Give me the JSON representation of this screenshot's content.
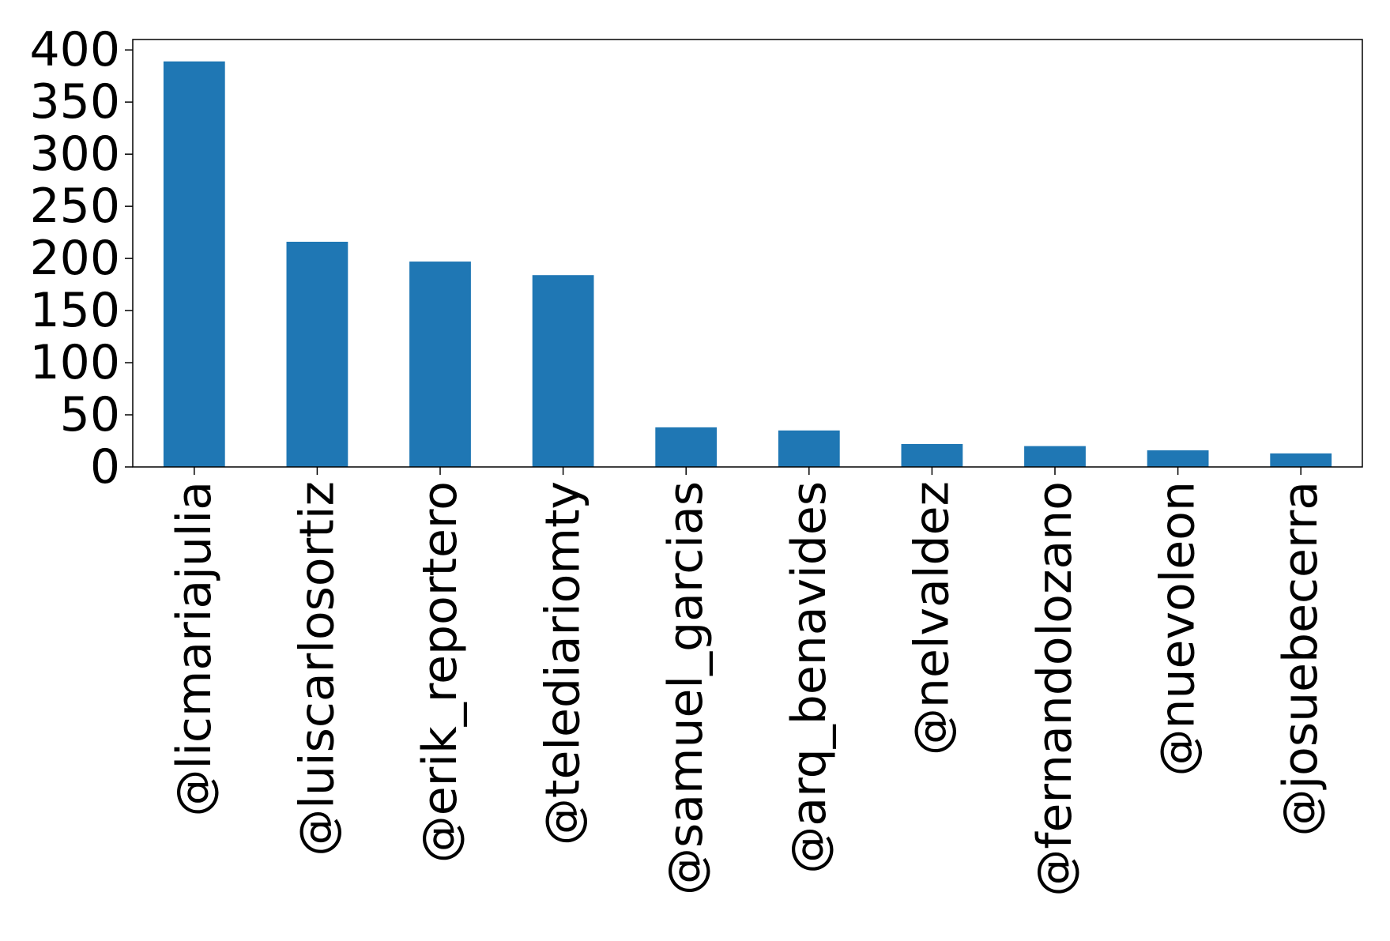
{
  "chart_data": {
    "type": "bar",
    "title": "",
    "xlabel": "",
    "ylabel": "",
    "categories": [
      "@licmariajulia",
      "@luiscarlosortiz",
      "@erik_reportero",
      "@telediariomty",
      "@samuel_garcias",
      "@arq_benavides",
      "@nelvaldez",
      "@fernandolozano",
      "@nuevoleon",
      "@josuebecerra"
    ],
    "values": [
      389,
      216,
      197,
      184,
      38,
      35,
      22,
      20,
      16,
      13
    ],
    "ylim": [
      0,
      410
    ],
    "yticks": [
      0,
      50,
      100,
      150,
      200,
      250,
      300,
      350,
      400
    ],
    "grid": false,
    "legend": "none",
    "bar_color": "#1f77b4"
  }
}
